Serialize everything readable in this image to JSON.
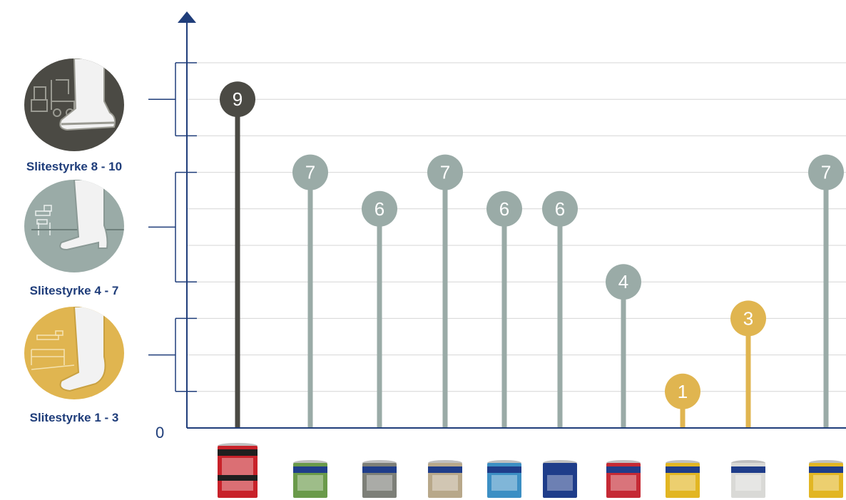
{
  "chart_data": {
    "type": "lollipop",
    "y_axis": {
      "min": 0,
      "max": 10,
      "zero_label": "0"
    },
    "grid": true,
    "bands": [
      {
        "label": "Slitestyrke 8 - 10",
        "range": [
          8,
          10
        ],
        "icon": "forklift-boot-icon",
        "color": "#4b4a44"
      },
      {
        "label": "Slitestyrke 4 - 7",
        "range": [
          4,
          7
        ],
        "icon": "office-heel-shoe-icon",
        "color": "#9aaba7"
      },
      {
        "label": "Slitestyrke 1 - 3",
        "range": [
          1,
          3
        ],
        "icon": "bedroom-sock-foot-icon",
        "color": "#e0b550"
      }
    ],
    "values": [
      9,
      7,
      6,
      7,
      6,
      6,
      4,
      1,
      3,
      7
    ],
    "colors": [
      "#4b4a44",
      "#9aaba7",
      "#9aaba7",
      "#9aaba7",
      "#9aaba7",
      "#9aaba7",
      "#9aaba7",
      "#e0b550",
      "#e0b550",
      "#9aaba7"
    ],
    "products": [
      {
        "icon": "red-paint-can-icon",
        "color": "#c8222a"
      },
      {
        "icon": "green-paint-can-icon",
        "color": "#6a9a4a"
      },
      {
        "icon": "grey-paint-can-icon",
        "color": "#7d7f78"
      },
      {
        "icon": "tan-paint-can-icon",
        "color": "#b8a88a"
      },
      {
        "icon": "blue-paint-can-icon",
        "color": "#3c8fc4"
      },
      {
        "icon": "navy-paint-can-icon",
        "color": "#1f3d8a"
      },
      {
        "icon": "red-paint-can-icon",
        "color": "#c52a35"
      },
      {
        "icon": "yellow-paint-can-icon",
        "color": "#e2b623"
      },
      {
        "icon": "white-paint-can-icon",
        "color": "#d9d9d6"
      },
      {
        "icon": "yellow-paint-can-icon",
        "color": "#e2b623"
      }
    ],
    "axis_color": "#1f3d7a",
    "grid_color": "#d6d6d6"
  }
}
